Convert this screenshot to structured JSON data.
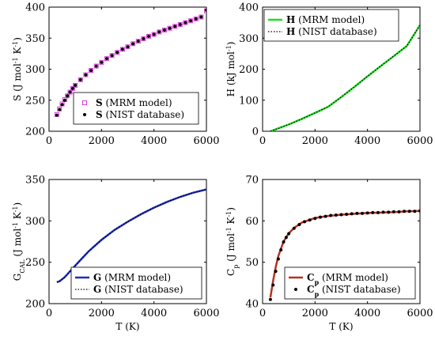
{
  "chart_data": [
    {
      "type": "scatter",
      "xlim": [
        0,
        6000
      ],
      "ylim": [
        200,
        400
      ],
      "xticks": [
        "0",
        "2000",
        "4000",
        "6000"
      ],
      "yticks": [
        "200",
        "250",
        "300",
        "350",
        "400"
      ],
      "ylabel": {
        "main": "S (J mol",
        "sup1": "-1",
        "mid": " K",
        "sup2": "-1",
        "end": ")"
      },
      "xlabel": "",
      "legend": {
        "position": "lower-right",
        "entries": [
          {
            "bold": "S",
            "text": " (MRM model)",
            "marker": "square",
            "color": "#d63fd6"
          },
          {
            "bold": "S",
            "text": " (NIST database)",
            "marker": "dot",
            "color": "#000000"
          }
        ]
      },
      "series": [
        {
          "style": "square",
          "color": "#d63fd6",
          "x": [
            298,
            400,
            500,
            600,
            700,
            800,
            900,
            1000,
            1200,
            1400,
            1600,
            1800,
            2000,
            2200,
            2400,
            2600,
            2800,
            3000,
            3200,
            3400,
            3600,
            3800,
            4000,
            4200,
            4400,
            4600,
            4800,
            5000,
            5200,
            5400,
            5600,
            5800,
            6000
          ],
          "y": [
            227,
            236,
            244,
            251,
            257,
            263,
            269,
            274,
            283,
            291,
            298,
            305,
            311,
            317,
            322,
            327,
            332,
            336,
            341,
            345,
            349,
            353,
            356,
            360,
            363,
            366,
            369,
            372,
            375,
            378,
            381,
            384,
            394
          ]
        },
        {
          "style": "dot",
          "color": "#000000",
          "x": [
            298,
            400,
            500,
            600,
            700,
            800,
            900,
            1000,
            1200,
            1400,
            1600,
            1800,
            2000,
            2200,
            2400,
            2600,
            2800,
            3000,
            3200,
            3400,
            3600,
            3800,
            4000,
            4200,
            4400,
            4600,
            4800,
            5000,
            5200,
            5400,
            5600,
            5800,
            6000
          ],
          "y": [
            226,
            235,
            243,
            250,
            257,
            263,
            269,
            274,
            283,
            291,
            298,
            305,
            311,
            317,
            322,
            327,
            332,
            336,
            341,
            345,
            349,
            353,
            356,
            360,
            363,
            366,
            369,
            372,
            375,
            378,
            381,
            384,
            395
          ]
        }
      ]
    },
    {
      "type": "line",
      "xlim": [
        0,
        6000
      ],
      "ylim": [
        0,
        400
      ],
      "xticks": [
        "0",
        "2000",
        "4000",
        "6000"
      ],
      "yticks": [
        "0",
        "100",
        "200",
        "300",
        "400"
      ],
      "ylabel": {
        "main": "H (kJ mol",
        "sup1": "-1",
        "mid": "",
        "sup2": "",
        "end": ")"
      },
      "xlabel": "",
      "legend": {
        "position": "top-left",
        "entries": [
          {
            "bold": "H",
            "text": " (MRM model)",
            "marker": "line",
            "color": "#22dd22"
          },
          {
            "bold": "H",
            "text": " (NIST database)",
            "marker": "dotted",
            "color": "#000000"
          }
        ]
      },
      "series": [
        {
          "style": "line",
          "color": "#22dd22",
          "x": [
            298,
            500,
            1000,
            1500,
            2000,
            2500,
            3000,
            3500,
            4000,
            4500,
            5000,
            5500,
            6000
          ],
          "y": [
            0,
            6,
            22,
            40,
            59,
            79,
            110,
            143,
            177,
            210,
            242,
            275,
            342
          ]
        },
        {
          "style": "dotted",
          "color": "#000000",
          "x": [
            298,
            500,
            1000,
            1500,
            2000,
            2500,
            3000,
            3500,
            4000,
            4500,
            5000,
            5500,
            6000
          ],
          "y": [
            0,
            6,
            22,
            40,
            59,
            79,
            110,
            143,
            177,
            210,
            242,
            275,
            342
          ]
        }
      ]
    },
    {
      "type": "line",
      "xlim": [
        0,
        6000
      ],
      "ylim": [
        200,
        350
      ],
      "xticks": [
        "0",
        "2000",
        "4000",
        "6000"
      ],
      "yticks": [
        "200",
        "250",
        "300",
        "350"
      ],
      "ylabel": {
        "main": "G",
        "sub": "CAL",
        "rest": " (J mol",
        "sup1": "-1",
        "mid": " K",
        "sup2": "-1",
        "end": ")"
      },
      "xlabel": "T (K)",
      "legend": {
        "position": "lower-right",
        "entries": [
          {
            "bold": "G",
            "text": " (MRM model)",
            "marker": "line",
            "color": "#1f2fbf"
          },
          {
            "bold": "G",
            "text": " (NIST database)",
            "marker": "dotted",
            "color": "#000000"
          }
        ]
      },
      "series": [
        {
          "style": "line",
          "color": "#1f2fbf",
          "x": [
            298,
            400,
            600,
            800,
            1000,
            1500,
            2000,
            2500,
            3000,
            3500,
            4000,
            4500,
            5000,
            5500,
            6000
          ],
          "y": [
            226,
            227,
            232,
            239,
            246,
            263,
            277,
            289,
            299,
            308,
            316,
            323,
            329,
            334,
            338
          ]
        },
        {
          "style": "dotted",
          "color": "#000000",
          "x": [
            298,
            400,
            600,
            800,
            1000,
            1500,
            2000,
            2500,
            3000,
            3500,
            4000,
            4500,
            5000,
            5500,
            6000
          ],
          "y": [
            226,
            227,
            232,
            239,
            246,
            263,
            277,
            289,
            299,
            308,
            316,
            323,
            329,
            334,
            338
          ]
        }
      ]
    },
    {
      "type": "scatter",
      "xlim": [
        0,
        6000
      ],
      "ylim": [
        40,
        70
      ],
      "xticks": [
        "0",
        "2000",
        "4000",
        "6000"
      ],
      "yticks": [
        "40",
        "50",
        "60",
        "70"
      ],
      "ylabel": {
        "main": "C",
        "sub": "p",
        "rest": " (J mol",
        "sup1": "-1",
        "mid": " K",
        "sup2": "-1",
        "end": ")"
      },
      "xlabel": "T (K)",
      "legend": {
        "position": "lower-right",
        "entries": [
          {
            "bold": "C",
            "sub": "p",
            "text": " (MRM model)",
            "marker": "line",
            "color": "#b5331f"
          },
          {
            "bold": "C",
            "sub": "p",
            "text": " (NIST database)",
            "marker": "dot",
            "color": "#000000"
          }
        ]
      },
      "series": [
        {
          "style": "line",
          "color": "#b5331f",
          "x": [
            298,
            400,
            500,
            600,
            800,
            1000,
            1200,
            1500,
            2000,
            2500,
            3000,
            3500,
            4000,
            4500,
            5000,
            5500,
            6000
          ],
          "y": [
            41.5,
            45.5,
            48.8,
            51.5,
            55.0,
            57.0,
            58.3,
            59.6,
            60.7,
            61.2,
            61.5,
            61.7,
            61.9,
            62.0,
            62.1,
            62.3,
            62.4
          ]
        },
        {
          "style": "dot",
          "color": "#000000",
          "x": [
            298,
            400,
            500,
            600,
            700,
            800,
            900,
            1000,
            1200,
            1400,
            1600,
            1800,
            2000,
            2200,
            2400,
            2600,
            2800,
            3000,
            3200,
            3400,
            3600,
            3800,
            4000,
            4200,
            4400,
            4600,
            4800,
            5000,
            5200,
            5400,
            5600,
            5800,
            6000
          ],
          "y": [
            41.0,
            44.5,
            47.8,
            50.8,
            53.0,
            54.9,
            56.0,
            56.9,
            58.2,
            59.1,
            59.8,
            60.2,
            60.6,
            60.9,
            61.1,
            61.3,
            61.4,
            61.5,
            61.6,
            61.7,
            61.8,
            61.8,
            61.9,
            62.0,
            62.0,
            62.1,
            62.1,
            62.2,
            62.2,
            62.3,
            62.3,
            62.3,
            62.4
          ]
        }
      ]
    }
  ]
}
